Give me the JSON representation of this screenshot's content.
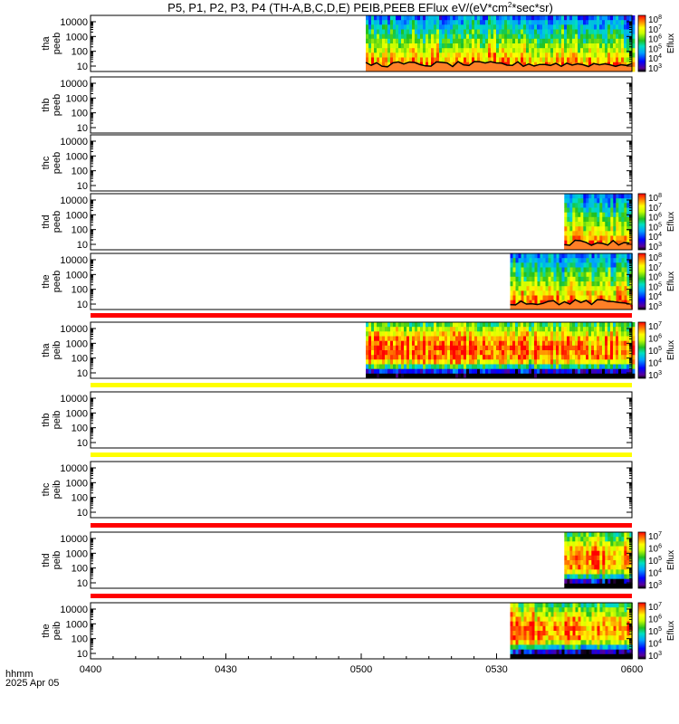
{
  "title": "P5, P1, P2, P3, P4 (TH-A,B,C,D,E) PEIB,PEEB EFlux eV/(eV*cm",
  "title_sup": "2",
  "title_end": "*sec*sr)",
  "footer": {
    "axis_label": "hhmm",
    "date": "2025 Apr 05"
  },
  "colorbar_label": "Eflux",
  "colors": {
    "bar_red": "#ff0000",
    "bar_yellow": "#ffff00",
    "orange_fill": "#ff7f27"
  },
  "chart_data": {
    "type": "heatmap",
    "x_ticks": [
      "0400",
      "0430",
      "0500",
      "0530",
      "0600"
    ],
    "x_range": [
      "04:00",
      "06:00"
    ],
    "y_scale": "log",
    "y_ticks": [
      "10000",
      "1000",
      "100",
      "10"
    ],
    "panels": [
      {
        "id": "tha-peeb",
        "label": [
          "tha",
          "peeb"
        ],
        "data_start": "05:01",
        "data_end": "06:00",
        "colorbar": [
          "8",
          "7",
          "6",
          "5",
          "4",
          "3"
        ],
        "status_bar": null,
        "has_baseline": true
      },
      {
        "id": "thb-peeb",
        "label": [
          "thb",
          "peeb"
        ],
        "data_start": null,
        "data_end": null,
        "colorbar": null,
        "status_bar": null,
        "has_baseline": false
      },
      {
        "id": "thc-peeb",
        "label": [
          "thc",
          "peeb"
        ],
        "data_start": null,
        "data_end": null,
        "colorbar": null,
        "status_bar": null,
        "has_baseline": false
      },
      {
        "id": "thd-peeb",
        "label": [
          "thd",
          "peeb"
        ],
        "data_start": "05:45",
        "data_end": "06:00",
        "colorbar": [
          "8",
          "7",
          "6",
          "5",
          "4",
          "3"
        ],
        "status_bar": null,
        "has_baseline": true
      },
      {
        "id": "the-peeb",
        "label": [
          "the",
          "peeb"
        ],
        "data_start": "05:33",
        "data_end": "06:00",
        "colorbar": [
          "8",
          "7",
          "6",
          "5",
          "4",
          "3"
        ],
        "status_bar": null,
        "has_baseline": true
      },
      {
        "id": "tha-peib",
        "label": [
          "tha",
          "peib"
        ],
        "data_start": "05:01",
        "data_end": "06:00",
        "colorbar": [
          "7",
          "6",
          "5",
          "4",
          "3"
        ],
        "status_bar": "red",
        "has_baseline": false
      },
      {
        "id": "thb-peib",
        "label": [
          "thb",
          "peib"
        ],
        "data_start": null,
        "data_end": null,
        "colorbar": null,
        "status_bar": "yellow",
        "has_baseline": false
      },
      {
        "id": "thc-peib",
        "label": [
          "thc",
          "peib"
        ],
        "data_start": null,
        "data_end": null,
        "colorbar": null,
        "status_bar": "yellow",
        "has_baseline": false
      },
      {
        "id": "thd-peib",
        "label": [
          "thd",
          "peib"
        ],
        "data_start": "05:45",
        "data_end": "06:00",
        "colorbar": [
          "7",
          "6",
          "5",
          "4",
          "3"
        ],
        "status_bar": "red",
        "has_baseline": false
      },
      {
        "id": "the-peib",
        "label": [
          "the",
          "peib"
        ],
        "data_start": "05:33",
        "data_end": "06:00",
        "colorbar": [
          "7",
          "6",
          "5",
          "4",
          "3"
        ],
        "status_bar": "red",
        "has_baseline": false
      }
    ]
  }
}
